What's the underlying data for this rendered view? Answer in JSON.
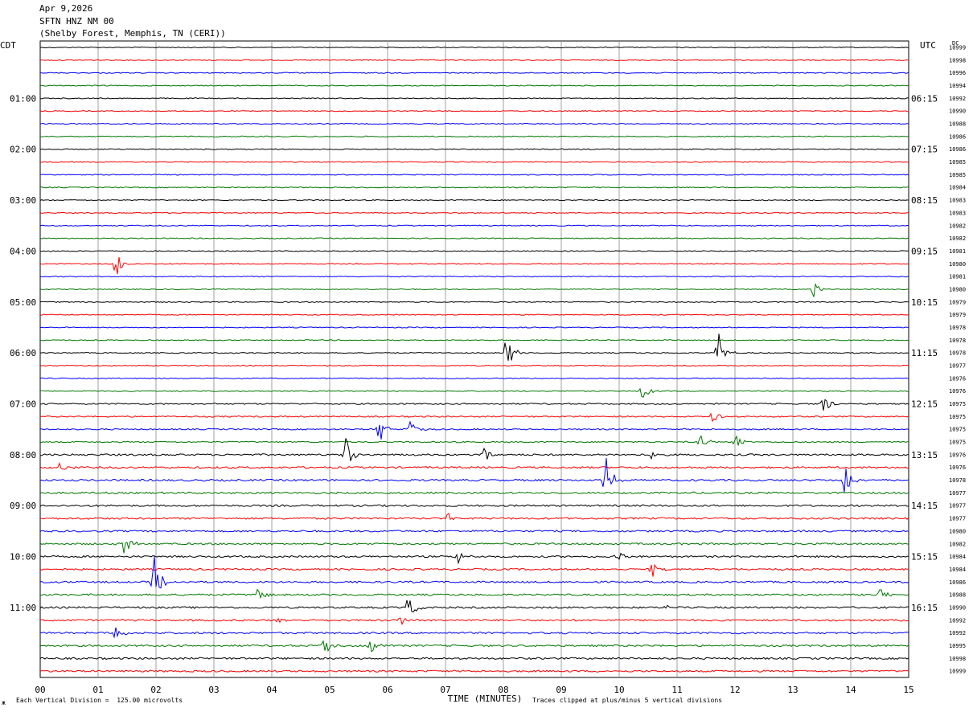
{
  "header": {
    "date": "Apr 9,2026",
    "station": "SFTN HNZ NM 00",
    "location": "(Shelby Forest, Memphis, TN (CERI))"
  },
  "labels": {
    "left_tz": "CDT",
    "right_tz": "UTC",
    "dc": "DC"
  },
  "footer": {
    "scale": "Each Vertical Division =  125.00 microvolts",
    "clip": "Traces clipped at plus/minus 5 vertical divisions",
    "mark": "ж"
  },
  "colors": {
    "cycle": [
      "#000000",
      "#ff0000",
      "#0000ff",
      "#007700"
    ],
    "grid": "#888888"
  },
  "chart_data": {
    "type": "helicorder",
    "title": "SFTN HNZ NM 00",
    "xlabel": "TIME (MINUTES)",
    "xlim": [
      0,
      15
    ],
    "x_ticks": [
      "00",
      "01",
      "02",
      "03",
      "04",
      "05",
      "06",
      "07",
      "08",
      "09",
      "10",
      "11",
      "12",
      "13",
      "14",
      "15"
    ],
    "rows_per_hour": 4,
    "minutes_per_row": 15,
    "left_hour_labels": [
      "01:00",
      "02:00",
      "03:00",
      "04:00",
      "05:00",
      "06:00",
      "07:00",
      "08:00",
      "09:00",
      "10:00",
      "11:00"
    ],
    "right_hour_labels": [
      "06:15",
      "07:15",
      "08:15",
      "09:15",
      "10:15",
      "11:15",
      "12:15",
      "13:15",
      "14:15",
      "15:15",
      "16:15"
    ],
    "dc_values": [
      "10999",
      "10998",
      "10996",
      "10994",
      "10992",
      "10990",
      "10988",
      "10986",
      "10986",
      "10985",
      "10985",
      "10984",
      "10983",
      "10983",
      "10982",
      "10982",
      "10981",
      "10980",
      "10981",
      "10980",
      "10979",
      "10979",
      "10978",
      "10978",
      "10978",
      "10977",
      "10976",
      "10976",
      "10975",
      "10975",
      "10975",
      "10975",
      "10976",
      "10976",
      "10978",
      "10977",
      "10977",
      "10977",
      "10980",
      "10982",
      "10984",
      "10984",
      "10986",
      "10988",
      "10990",
      "10992",
      "10992",
      "10995",
      "10998",
      "10999"
    ],
    "events": [
      {
        "row": 17,
        "minute": 1.3,
        "amp": 3.0
      },
      {
        "row": 19,
        "minute": 13.35,
        "amp": 1.3
      },
      {
        "row": 24,
        "minute": 8.05,
        "amp": 3.2
      },
      {
        "row": 24,
        "minute": 11.7,
        "amp": 4.0
      },
      {
        "row": 27,
        "minute": 10.4,
        "amp": 1.8
      },
      {
        "row": 28,
        "minute": 13.5,
        "amp": 2.2
      },
      {
        "row": 29,
        "minute": 11.6,
        "amp": 1.8
      },
      {
        "row": 30,
        "minute": 5.85,
        "amp": 3.0
      },
      {
        "row": 30,
        "minute": 6.4,
        "amp": 2.0
      },
      {
        "row": 31,
        "minute": 11.4,
        "amp": 1.6
      },
      {
        "row": 31,
        "minute": 12.0,
        "amp": 1.6
      },
      {
        "row": 32,
        "minute": 5.25,
        "amp": 4.0
      },
      {
        "row": 32,
        "minute": 7.65,
        "amp": 2.2
      },
      {
        "row": 32,
        "minute": 10.55,
        "amp": 0.8
      },
      {
        "row": 33,
        "minute": 0.35,
        "amp": 1.6
      },
      {
        "row": 34,
        "minute": 9.75,
        "amp": 5.0
      },
      {
        "row": 34,
        "minute": 13.9,
        "amp": 3.0
      },
      {
        "row": 37,
        "minute": 7.05,
        "amp": 1.0
      },
      {
        "row": 39,
        "minute": 1.45,
        "amp": 2.0
      },
      {
        "row": 40,
        "minute": 7.2,
        "amp": 1.4
      },
      {
        "row": 40,
        "minute": 9.95,
        "amp": 1.2
      },
      {
        "row": 41,
        "minute": 10.55,
        "amp": 1.6
      },
      {
        "row": 42,
        "minute": 1.95,
        "amp": 5.0
      },
      {
        "row": 43,
        "minute": 3.75,
        "amp": 2.0
      },
      {
        "row": 43,
        "minute": 14.5,
        "amp": 1.4
      },
      {
        "row": 44,
        "minute": 6.35,
        "amp": 2.2
      },
      {
        "row": 44,
        "minute": 10.8,
        "amp": 0.6
      },
      {
        "row": 45,
        "minute": 4.1,
        "amp": 0.5
      },
      {
        "row": 45,
        "minute": 6.2,
        "amp": 1.2
      },
      {
        "row": 46,
        "minute": 1.3,
        "amp": 2.5
      },
      {
        "row": 47,
        "minute": 4.9,
        "amp": 2.5
      },
      {
        "row": 47,
        "minute": 5.7,
        "amp": 2.0
      }
    ],
    "clip_divisions": 5,
    "microvolts_per_division": 125.0
  }
}
